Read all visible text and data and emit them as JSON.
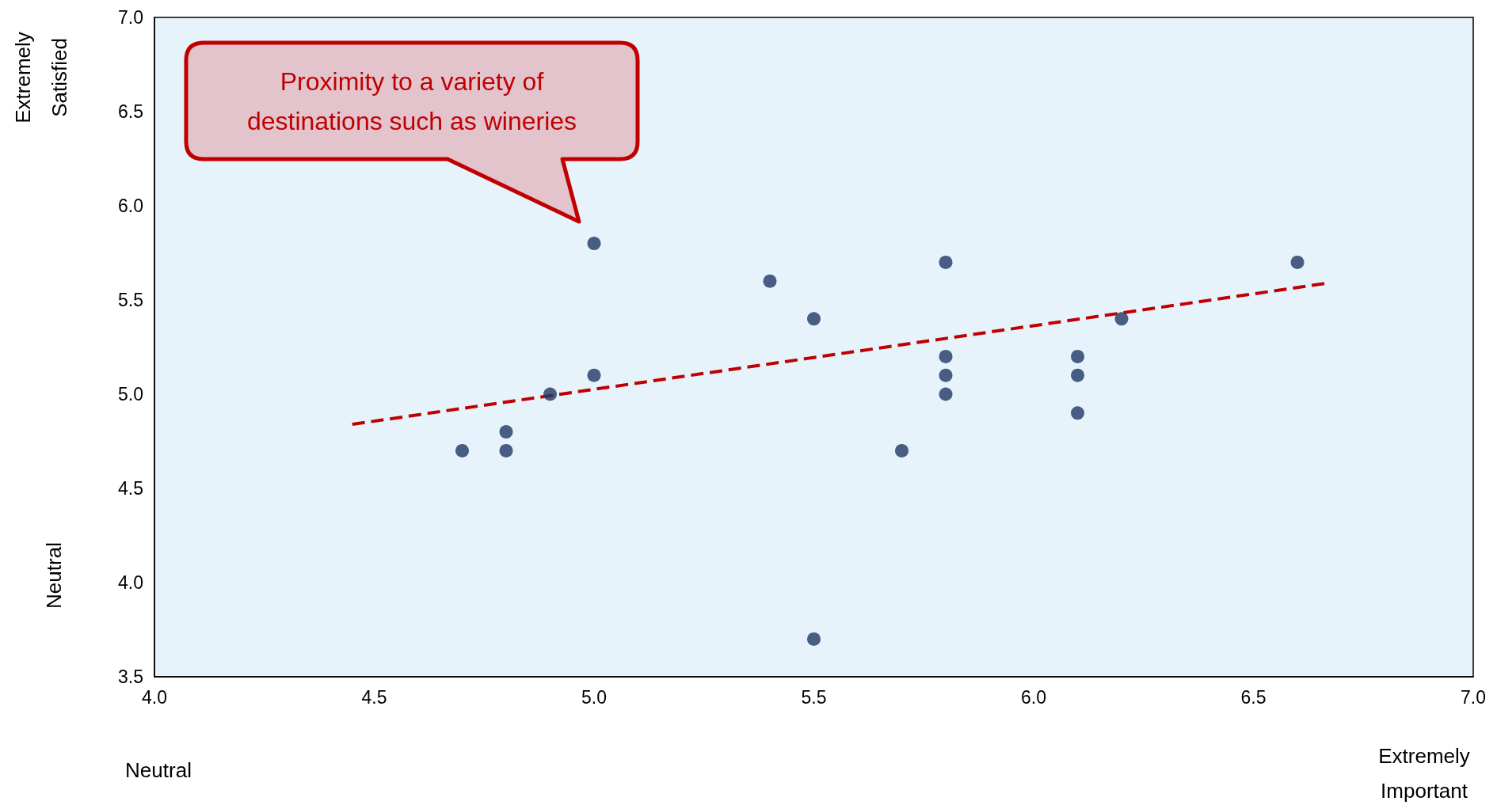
{
  "chart_data": {
    "type": "scatter",
    "marker": "circle",
    "xlim": [
      4.0,
      7.0
    ],
    "ylim": [
      3.5,
      7.0
    ],
    "xticks": [
      {
        "value": 4.0,
        "label": "4.0"
      },
      {
        "value": 4.5,
        "label": "4.5"
      },
      {
        "value": 5.0,
        "label": "5.0"
      },
      {
        "value": 5.5,
        "label": "5.5"
      },
      {
        "value": 6.0,
        "label": "6.0"
      },
      {
        "value": 6.5,
        "label": "6.5"
      },
      {
        "value": 7.0,
        "label": "7.0"
      }
    ],
    "yticks": [
      {
        "value": 3.5,
        "label": "3.5"
      },
      {
        "value": 4.0,
        "label": "4.0"
      },
      {
        "value": 4.5,
        "label": "4.5"
      },
      {
        "value": 5.0,
        "label": "5.0"
      },
      {
        "value": 5.5,
        "label": "5.5"
      },
      {
        "value": 6.0,
        "label": "6.0"
      },
      {
        "value": 6.5,
        "label": "6.5"
      },
      {
        "value": 7.0,
        "label": "7.0"
      }
    ],
    "grid": false,
    "series": [
      {
        "color": "#1f3864",
        "x": [
          4.7,
          4.8,
          4.8,
          4.9,
          5.0,
          5.0,
          5.4,
          5.5,
          5.5,
          5.7,
          5.8,
          5.8,
          5.8,
          5.8,
          6.1,
          6.1,
          6.1,
          6.2,
          6.6
        ],
        "values": [
          4.7,
          4.8,
          4.7,
          5.0,
          5.8,
          5.1,
          5.6,
          5.4,
          3.7,
          4.7,
          5.7,
          5.2,
          5.1,
          5.0,
          5.2,
          5.1,
          4.9,
          5.4,
          5.7
        ]
      },
      {
        "type": "line",
        "color": "#c00000",
        "line_style": "dashed",
        "marker": "none",
        "x": [
          4.45,
          6.67
        ],
        "values": [
          4.84,
          5.59
        ]
      }
    ],
    "annotations": [
      "Proximity to a variety of\ndestinations such as wineries",
      "Extremely\nSatisfied",
      "Neutral",
      "Neutral",
      "Extremely\nImportant"
    ]
  }
}
